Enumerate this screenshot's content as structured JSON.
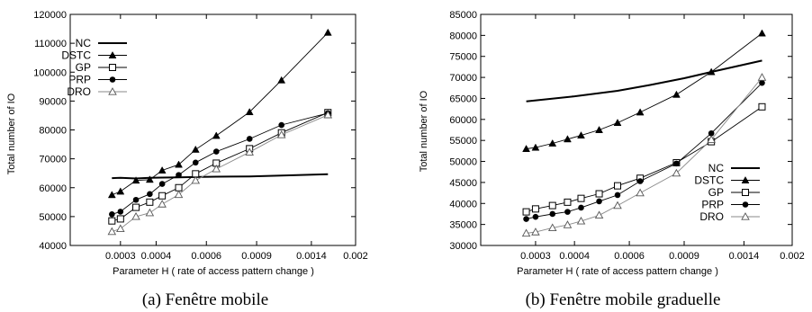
{
  "chart_data": [
    {
      "type": "line",
      "caption": "(a) Fenêtre mobile",
      "xlabel": "Parameter H ( rate of access pattern change )",
      "ylabel": "Total number of IO",
      "xlim": [
        0.0002,
        0.002
      ],
      "ylim": [
        40000,
        120000
      ],
      "x_ticks": [
        "0.0003",
        "0.0004",
        "0.0006",
        "0.0009",
        "0.0014",
        "0.002"
      ],
      "y_ticks": [
        "40000",
        "50000",
        "60000",
        "70000",
        "80000",
        "90000",
        "100000",
        "110000",
        "120000"
      ],
      "x_tick_values": [
        0.0003,
        0.0004,
        0.0006,
        0.0009,
        0.0014,
        0.002
      ],
      "y_tick_values": [
        40000,
        50000,
        60000,
        70000,
        80000,
        90000,
        100000,
        110000,
        120000
      ],
      "x_scale": "log",
      "legend_position": "top-left",
      "series": [
        {
          "name": "NC",
          "marker": "none",
          "line": "thick",
          "color": "#000000",
          "x": [
            0.00028,
            0.0003,
            0.00034,
            0.00038,
            0.00042,
            0.00048,
            0.00055,
            0.00065,
            0.00085,
            0.0011,
            0.0016
          ],
          "y": [
            63300,
            63400,
            63200,
            63400,
            63500,
            63600,
            63700,
            63800,
            63900,
            64200,
            64700
          ]
        },
        {
          "name": "DSTC",
          "marker": "filled-triangle",
          "line": "thin",
          "color": "#000000",
          "x": [
            0.00028,
            0.0003,
            0.00034,
            0.00038,
            0.00042,
            0.00048,
            0.00055,
            0.00065,
            0.00085,
            0.0011,
            0.0016
          ],
          "y": [
            57500,
            58700,
            62500,
            62800,
            66000,
            68000,
            73200,
            78000,
            86200,
            97200,
            113700
          ]
        },
        {
          "name": "GP",
          "marker": "open-square",
          "line": "thin",
          "color": "#000000",
          "x": [
            0.00028,
            0.0003,
            0.00034,
            0.00038,
            0.00042,
            0.00048,
            0.00055,
            0.00065,
            0.00085,
            0.0011,
            0.0016
          ],
          "y": [
            48500,
            49200,
            53200,
            55000,
            57200,
            60000,
            64800,
            68500,
            73500,
            79000,
            86000
          ]
        },
        {
          "name": "PRP",
          "marker": "filled-circle",
          "line": "thin",
          "color": "#000000",
          "x": [
            0.00028,
            0.0003,
            0.00034,
            0.00038,
            0.00042,
            0.00048,
            0.00055,
            0.00065,
            0.00085,
            0.0011,
            0.0016
          ],
          "y": [
            50800,
            51700,
            55800,
            57800,
            61300,
            64400,
            68700,
            72500,
            76900,
            81700,
            85800
          ]
        },
        {
          "name": "DRO",
          "marker": "open-triangle",
          "line": "thin-gray",
          "color": "#888888",
          "x": [
            0.00028,
            0.0003,
            0.00034,
            0.00038,
            0.00042,
            0.00048,
            0.00055,
            0.00065,
            0.00085,
            0.0011,
            0.0016
          ],
          "y": [
            44800,
            45800,
            50000,
            51300,
            54300,
            57600,
            62500,
            66500,
            72300,
            78300,
            85200
          ]
        }
      ]
    },
    {
      "type": "line",
      "caption": "(b) Fenêtre mobile graduelle",
      "xlabel": "Parameter H ( rate of access pattern change )",
      "ylabel": "Total number of IO",
      "xlim": [
        0.0002,
        0.002
      ],
      "ylim": [
        30000,
        85000
      ],
      "x_ticks": [
        "0.0003",
        "0.0004",
        "0.0006",
        "0.0009",
        "0.0014",
        "0.002"
      ],
      "y_ticks": [
        "30000",
        "35000",
        "40000",
        "45000",
        "50000",
        "55000",
        "60000",
        "65000",
        "70000",
        "75000",
        "80000",
        "85000"
      ],
      "x_tick_values": [
        0.0003,
        0.0004,
        0.0006,
        0.0009,
        0.0014,
        0.002
      ],
      "y_tick_values": [
        30000,
        35000,
        40000,
        45000,
        50000,
        55000,
        60000,
        65000,
        70000,
        75000,
        80000,
        85000
      ],
      "x_scale": "log",
      "legend_position": "bottom-right",
      "series": [
        {
          "name": "NC",
          "marker": "none",
          "line": "thick",
          "color": "#000000",
          "x": [
            0.00028,
            0.0004,
            0.00055,
            0.0007,
            0.0009,
            0.0011,
            0.0013,
            0.0016
          ],
          "y": [
            64300,
            65500,
            66800,
            68200,
            69800,
            71300,
            72500,
            74000
          ]
        },
        {
          "name": "DSTC",
          "marker": "filled-triangle",
          "line": "thin",
          "color": "#000000",
          "x": [
            0.00028,
            0.0003,
            0.00034,
            0.00038,
            0.00042,
            0.00048,
            0.00055,
            0.00065,
            0.00085,
            0.0011,
            0.0016
          ],
          "y": [
            53000,
            53300,
            54300,
            55300,
            56200,
            57500,
            59200,
            61700,
            65900,
            71300,
            80500
          ]
        },
        {
          "name": "GP",
          "marker": "open-square",
          "line": "thin",
          "color": "#000000",
          "x": [
            0.00028,
            0.0003,
            0.00034,
            0.00038,
            0.00042,
            0.00048,
            0.00055,
            0.00065,
            0.00085,
            0.0011,
            0.0016
          ],
          "y": [
            38000,
            38700,
            39500,
            40300,
            41200,
            42300,
            44200,
            46000,
            49700,
            54700,
            63000
          ]
        },
        {
          "name": "PRP",
          "marker": "filled-circle",
          "line": "thin",
          "color": "#000000",
          "x": [
            0.00028,
            0.0003,
            0.00034,
            0.00038,
            0.00042,
            0.00048,
            0.00055,
            0.00065,
            0.00085,
            0.0011,
            0.0016
          ],
          "y": [
            36300,
            36800,
            37500,
            38000,
            39000,
            40500,
            42000,
            45300,
            49500,
            56700,
            68700
          ]
        },
        {
          "name": "DRO",
          "marker": "open-triangle",
          "line": "thin-gray",
          "color": "#888888",
          "x": [
            0.00028,
            0.0003,
            0.00034,
            0.00038,
            0.00042,
            0.00048,
            0.00055,
            0.00065,
            0.00085,
            0.0011,
            0.0016
          ],
          "y": [
            32900,
            33200,
            34200,
            34900,
            35800,
            37200,
            39500,
            42500,
            47200,
            55200,
            70000
          ]
        }
      ]
    }
  ]
}
